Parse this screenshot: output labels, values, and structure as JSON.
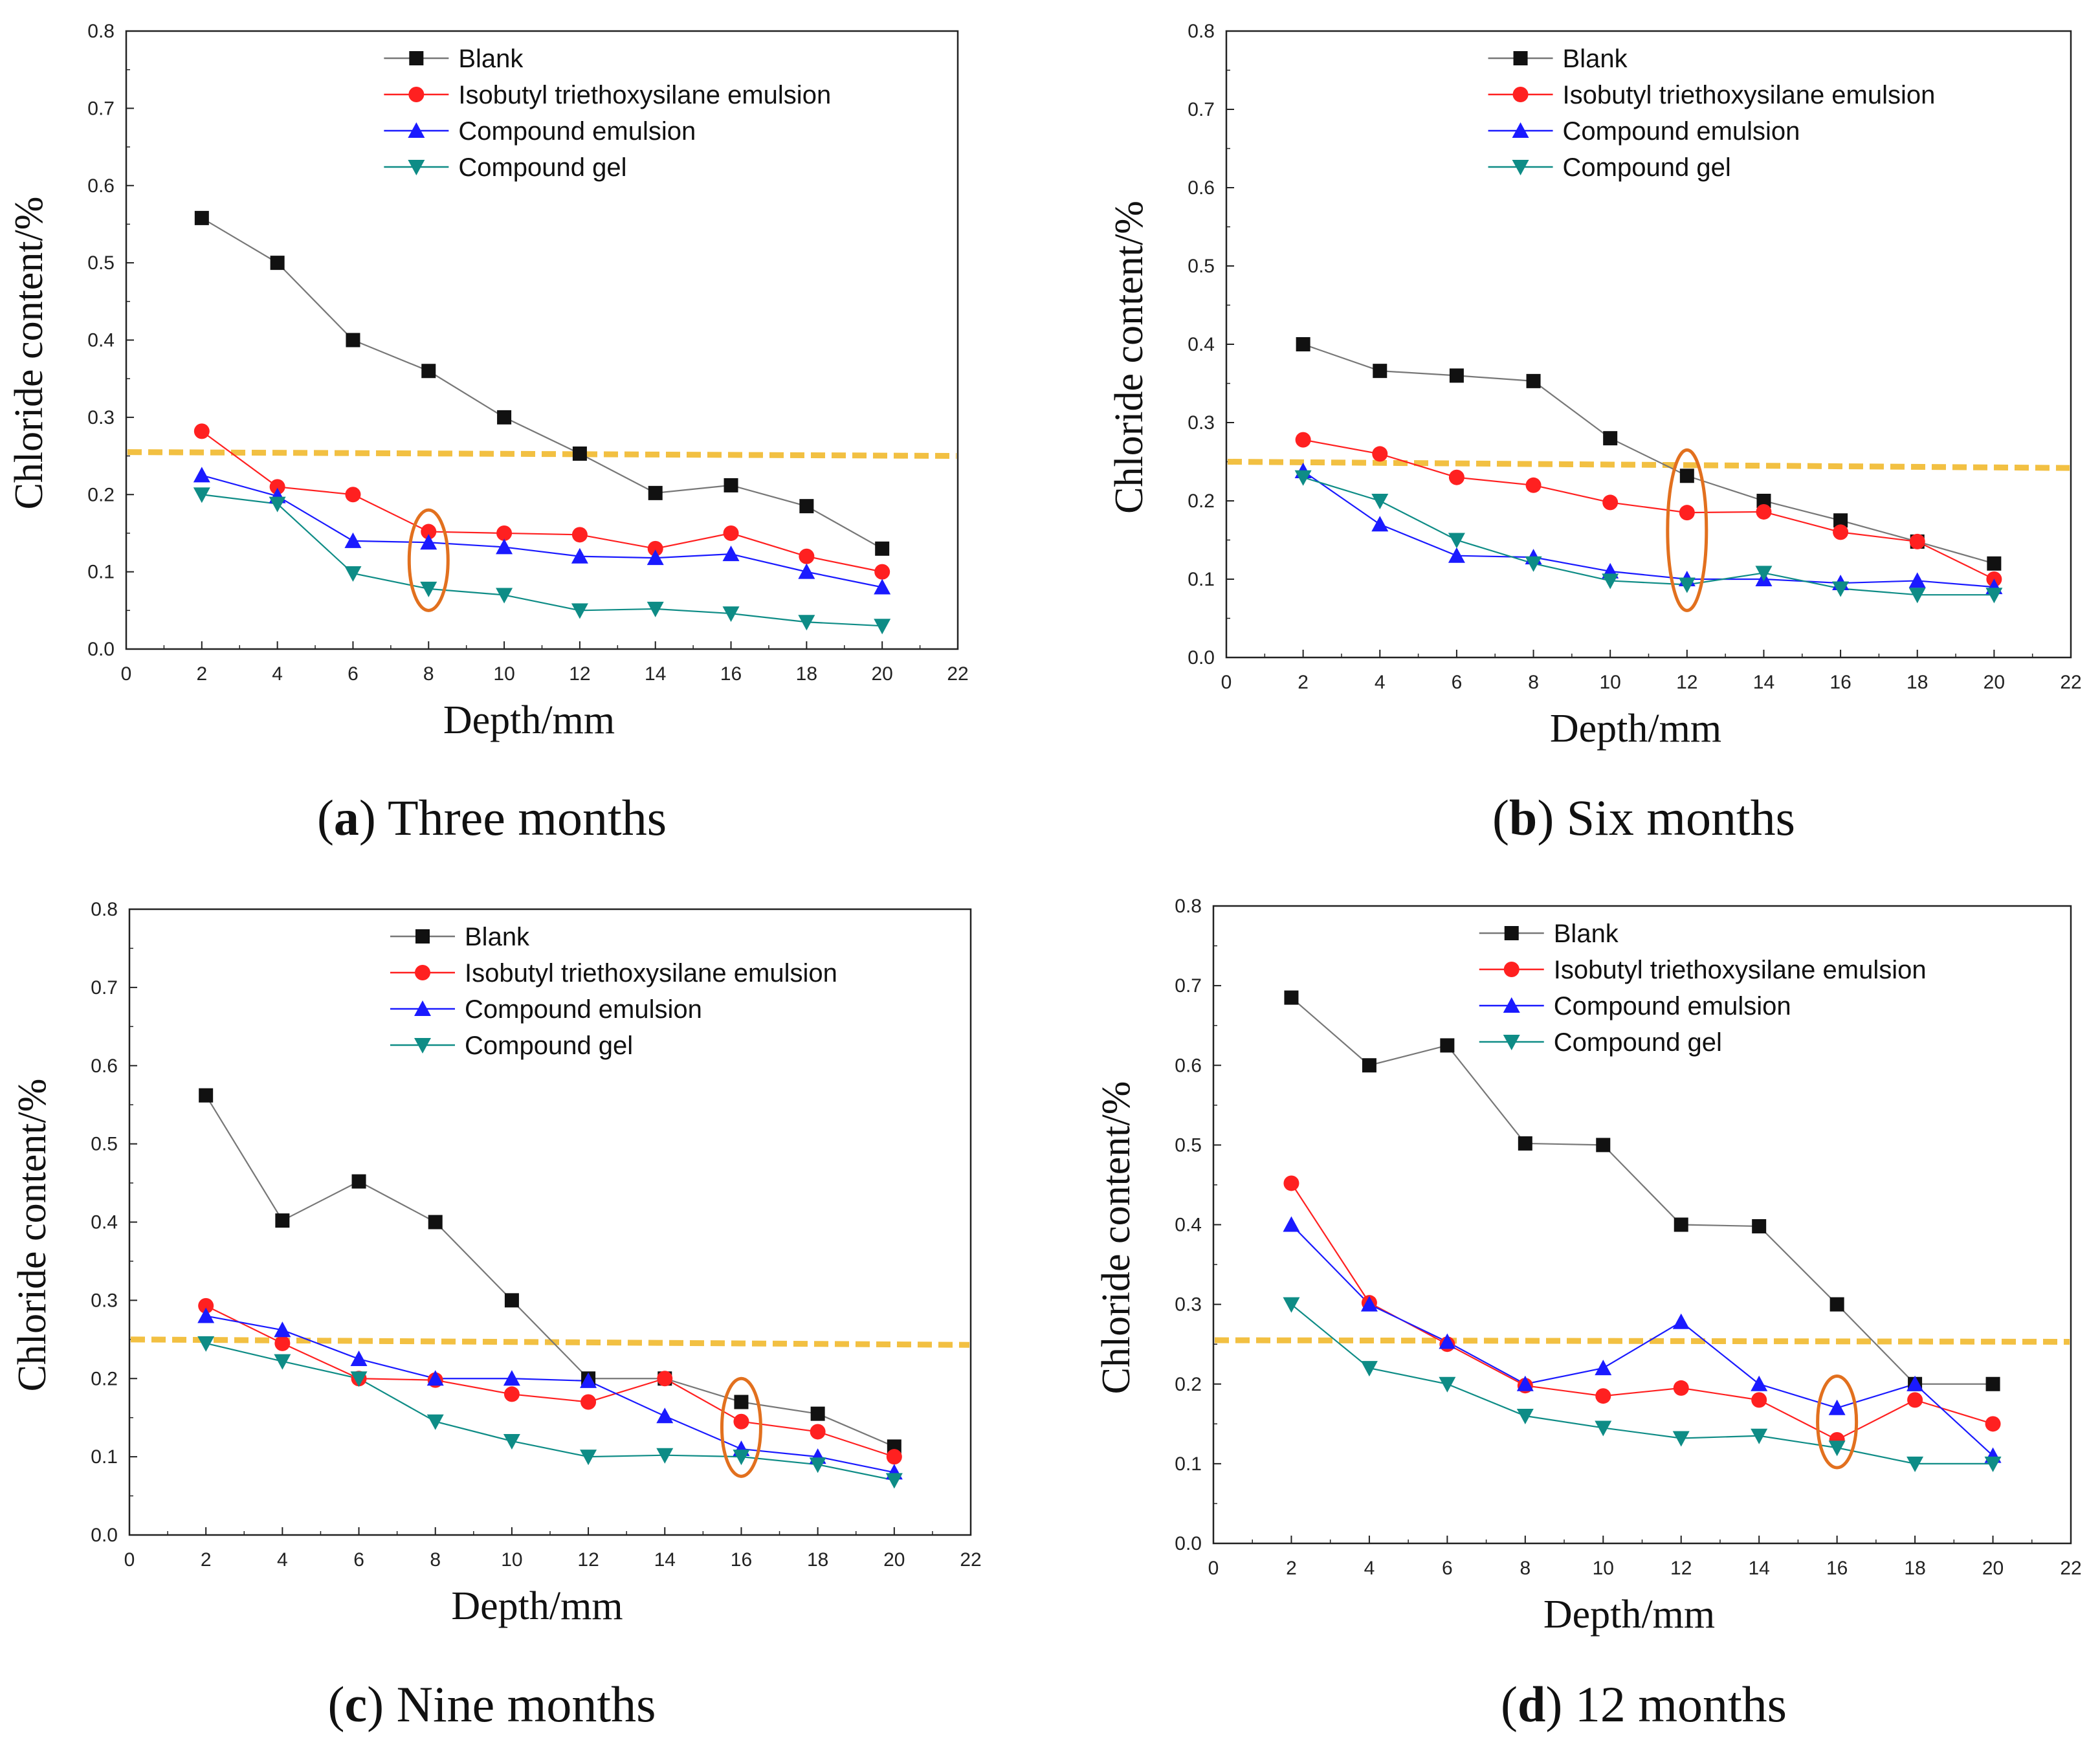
{
  "figure": {
    "legend": {
      "blank": "Blank",
      "isobutyl": "Isobutyl triethoxysilane emulsion",
      "compound_emulsion": "Compound emulsion",
      "compound_gel": "Compound gel"
    },
    "captions": [
      {
        "letter": "a",
        "text": "Three months"
      },
      {
        "letter": "b",
        "text": "Six months"
      },
      {
        "letter": "c",
        "text": "Nine months"
      },
      {
        "letter": "d",
        "text": "12 months"
      }
    ]
  },
  "colors": {
    "blank": "#111111",
    "blank_line": "#777777",
    "isobutyl": "#ff2020",
    "compound_emulsion": "#1a1aff",
    "compound_gel": "#0e8c86",
    "threshold": "#f2c042",
    "highlight": "#e2701e"
  },
  "chart_data": [
    {
      "type": "line",
      "title": "Three months",
      "xlabel": "Depth/mm",
      "ylabel": "Chloride content/%",
      "xlim": [
        0,
        22
      ],
      "ylim": [
        0,
        0.8
      ],
      "xticks": [
        "0",
        "2",
        "4",
        "6",
        "8",
        "10",
        "12",
        "14",
        "16",
        "18",
        "20",
        "22"
      ],
      "yticks": [
        "0.0",
        "0.1",
        "0.2",
        "0.3",
        "0.4",
        "0.5",
        "0.6",
        "0.7",
        "0.8"
      ],
      "x": [
        2,
        4,
        6,
        8,
        10,
        12,
        14,
        16,
        18,
        20
      ],
      "series": [
        {
          "name": "Blank",
          "values": [
            0.558,
            0.5,
            0.4,
            0.36,
            0.3,
            0.253,
            0.202,
            0.212,
            0.185,
            0.13
          ]
        },
        {
          "name": "Isobutyl triethoxysilane emulsion",
          "values": [
            0.282,
            0.21,
            0.2,
            0.152,
            0.15,
            0.148,
            0.13,
            0.15,
            0.12,
            0.1
          ]
        },
        {
          "name": "Compound emulsion",
          "values": [
            0.225,
            0.198,
            0.14,
            0.138,
            0.132,
            0.12,
            0.118,
            0.123,
            0.1,
            0.08
          ]
        },
        {
          "name": "Compound gel",
          "values": [
            0.2,
            0.188,
            0.098,
            0.078,
            0.07,
            0.05,
            0.052,
            0.046,
            0.035,
            0.03
          ]
        }
      ],
      "threshold": [
        0.255,
        0.25
      ],
      "highlight_x": 8,
      "highlight_yrange": [
        0.05,
        0.18
      ],
      "legend": "top-right"
    },
    {
      "type": "line",
      "title": "Six months",
      "xlabel": "Depth/mm",
      "ylabel": "Chloride content/%",
      "xlim": [
        0,
        22
      ],
      "ylim": [
        0,
        0.8
      ],
      "xticks": [
        "0",
        "2",
        "4",
        "6",
        "8",
        "10",
        "12",
        "14",
        "16",
        "18",
        "20",
        "22"
      ],
      "yticks": [
        "0.0",
        "0.1",
        "0.2",
        "0.3",
        "0.4",
        "0.5",
        "0.6",
        "0.7",
        "0.8"
      ],
      "x": [
        2,
        4,
        6,
        8,
        10,
        12,
        14,
        16,
        18,
        20
      ],
      "series": [
        {
          "name": "Blank",
          "values": [
            0.4,
            0.366,
            0.36,
            0.353,
            0.28,
            0.232,
            0.2,
            0.175,
            0.148,
            0.12
          ]
        },
        {
          "name": "Isobutyl triethoxysilane emulsion",
          "values": [
            0.278,
            0.26,
            0.23,
            0.22,
            0.198,
            0.185,
            0.186,
            0.16,
            0.148,
            0.1
          ]
        },
        {
          "name": "Compound emulsion",
          "values": [
            0.238,
            0.17,
            0.13,
            0.128,
            0.11,
            0.1,
            0.1,
            0.095,
            0.098,
            0.09
          ]
        },
        {
          "name": "Compound gel",
          "values": [
            0.23,
            0.2,
            0.15,
            0.12,
            0.098,
            0.093,
            0.108,
            0.088,
            0.08,
            0.08
          ]
        }
      ],
      "threshold": [
        0.25,
        0.242
      ],
      "highlight_x": 12,
      "highlight_yrange": [
        0.06,
        0.265
      ],
      "legend": "top-right"
    },
    {
      "type": "line",
      "title": "Nine months",
      "xlabel": "Depth/mm",
      "ylabel": "Chloride content/%",
      "xlim": [
        0,
        22
      ],
      "ylim": [
        0,
        0.8
      ],
      "xticks": [
        "0",
        "2",
        "4",
        "6",
        "8",
        "10",
        "12",
        "14",
        "16",
        "18",
        "20",
        "22"
      ],
      "yticks": [
        "0.0",
        "0.1",
        "0.2",
        "0.3",
        "0.4",
        "0.5",
        "0.6",
        "0.7",
        "0.8"
      ],
      "x": [
        2,
        4,
        6,
        8,
        10,
        12,
        14,
        16,
        18,
        20
      ],
      "series": [
        {
          "name": "Blank",
          "values": [
            0.562,
            0.402,
            0.452,
            0.4,
            0.3,
            0.2,
            0.2,
            0.17,
            0.155,
            0.113
          ]
        },
        {
          "name": "Isobutyl triethoxysilane emulsion",
          "values": [
            0.293,
            0.245,
            0.2,
            0.198,
            0.18,
            0.17,
            0.2,
            0.145,
            0.132,
            0.1
          ]
        },
        {
          "name": "Compound emulsion",
          "values": [
            0.28,
            0.262,
            0.225,
            0.2,
            0.2,
            0.197,
            0.152,
            0.11,
            0.1,
            0.08
          ]
        },
        {
          "name": "Compound gel",
          "values": [
            0.245,
            0.222,
            0.2,
            0.145,
            0.12,
            0.1,
            0.102,
            0.1,
            0.09,
            0.07
          ]
        }
      ],
      "threshold": [
        0.25,
        0.243
      ],
      "highlight_x": 16,
      "highlight_yrange": [
        0.075,
        0.2
      ],
      "legend": "top-right"
    },
    {
      "type": "line",
      "title": "12 months",
      "xlabel": "Depth/mm",
      "ylabel": "Chloride content/%",
      "xlim": [
        0,
        22
      ],
      "ylim": [
        0,
        0.8
      ],
      "xticks": [
        "0",
        "2",
        "4",
        "6",
        "8",
        "10",
        "12",
        "14",
        "16",
        "18",
        "20",
        "22"
      ],
      "yticks": [
        "0.0",
        "0.1",
        "0.2",
        "0.3",
        "0.4",
        "0.5",
        "0.6",
        "0.7",
        "0.8"
      ],
      "x": [
        2,
        4,
        6,
        8,
        10,
        12,
        14,
        16,
        18,
        20
      ],
      "series": [
        {
          "name": "Blank",
          "values": [
            0.685,
            0.6,
            0.625,
            0.502,
            0.5,
            0.4,
            0.398,
            0.3,
            0.2,
            0.2
          ]
        },
        {
          "name": "Isobutyl triethoxysilane emulsion",
          "values": [
            0.452,
            0.302,
            0.25,
            0.198,
            0.185,
            0.195,
            0.18,
            0.13,
            0.18,
            0.15
          ]
        },
        {
          "name": "Compound emulsion",
          "values": [
            0.4,
            0.3,
            0.253,
            0.2,
            0.22,
            0.278,
            0.2,
            0.17,
            0.2,
            0.11
          ]
        },
        {
          "name": "Compound gel",
          "values": [
            0.3,
            0.22,
            0.2,
            0.16,
            0.145,
            0.132,
            0.135,
            0.12,
            0.1,
            0.1
          ]
        }
      ],
      "threshold": [
        0.255,
        0.253
      ],
      "highlight_x": 16,
      "highlight_yrange": [
        0.095,
        0.21
      ],
      "legend": "top-right"
    }
  ]
}
